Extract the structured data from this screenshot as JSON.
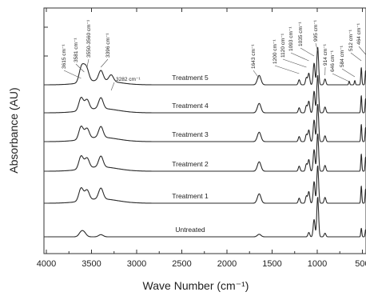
{
  "chart_data": {
    "type": "line",
    "title": "",
    "xlabel": "Wave Number (cm⁻¹)",
    "ylabel": "Absorbance (AU)",
    "xlim": [
      4000,
      460
    ],
    "x_reversed": true,
    "x_ticks": [
      4000,
      3500,
      3000,
      2500,
      2000,
      1500,
      1000,
      500
    ],
    "x_tick_labels": [
      "4000",
      "3500",
      "3000",
      "2500",
      "2000",
      "1500",
      "1000",
      "500"
    ],
    "y_ticks_shown": false,
    "grid": false,
    "series": [
      {
        "name": "Untreated",
        "peaks": [
          {
            "x": 3615,
            "h": 0.6
          },
          {
            "x": 3581,
            "h": 0.5
          },
          {
            "x": 3396,
            "h": 0.3
          },
          {
            "x": 1643,
            "h": 0.35
          },
          {
            "x": 1093,
            "h": 0.6
          },
          {
            "x": 1035,
            "h": 2.4
          },
          {
            "x": 995,
            "h": 5.5
          },
          {
            "x": 914,
            "h": 0.5
          },
          {
            "x": 512,
            "h": 1.2
          },
          {
            "x": 464,
            "h": 1.0
          }
        ]
      },
      {
        "name": "Treatment 1",
        "peaks": [
          {
            "x": 3615,
            "h": 1.8
          },
          {
            "x": 3550,
            "h": 1.4
          },
          {
            "x": 3396,
            "h": 1.5
          },
          {
            "x": 1643,
            "h": 1.3
          },
          {
            "x": 1200,
            "h": 0.7
          },
          {
            "x": 1120,
            "h": 1.0
          },
          {
            "x": 1093,
            "h": 1.6
          },
          {
            "x": 1035,
            "h": 3.0
          },
          {
            "x": 995,
            "h": 5.2
          },
          {
            "x": 914,
            "h": 0.8
          },
          {
            "x": 512,
            "h": 2.4
          },
          {
            "x": 464,
            "h": 2.0
          }
        ]
      },
      {
        "name": "Treatment 2",
        "peaks": [
          {
            "x": 3615,
            "h": 1.8
          },
          {
            "x": 3550,
            "h": 1.4
          },
          {
            "x": 3396,
            "h": 1.5
          },
          {
            "x": 1643,
            "h": 1.3
          },
          {
            "x": 1200,
            "h": 0.7
          },
          {
            "x": 1120,
            "h": 1.0
          },
          {
            "x": 1093,
            "h": 1.6
          },
          {
            "x": 1035,
            "h": 3.0
          },
          {
            "x": 995,
            "h": 5.2
          },
          {
            "x": 914,
            "h": 0.8
          },
          {
            "x": 512,
            "h": 2.4
          },
          {
            "x": 464,
            "h": 2.0
          }
        ]
      },
      {
        "name": "Treatment 3",
        "peaks": [
          {
            "x": 3615,
            "h": 1.8
          },
          {
            "x": 3550,
            "h": 1.4
          },
          {
            "x": 3396,
            "h": 1.5
          },
          {
            "x": 1643,
            "h": 1.3
          },
          {
            "x": 1200,
            "h": 0.7
          },
          {
            "x": 1120,
            "h": 1.0
          },
          {
            "x": 1093,
            "h": 1.6
          },
          {
            "x": 1035,
            "h": 3.0
          },
          {
            "x": 995,
            "h": 5.2
          },
          {
            "x": 914,
            "h": 0.8
          },
          {
            "x": 512,
            "h": 2.4
          },
          {
            "x": 464,
            "h": 2.0
          }
        ]
      },
      {
        "name": "Treatment 4",
        "peaks": [
          {
            "x": 3615,
            "h": 1.8
          },
          {
            "x": 3550,
            "h": 1.4
          },
          {
            "x": 3396,
            "h": 1.5
          },
          {
            "x": 1643,
            "h": 1.3
          },
          {
            "x": 1200,
            "h": 0.7
          },
          {
            "x": 1120,
            "h": 1.0
          },
          {
            "x": 1093,
            "h": 1.6
          },
          {
            "x": 1035,
            "h": 3.0
          },
          {
            "x": 995,
            "h": 5.2
          },
          {
            "x": 914,
            "h": 0.8
          },
          {
            "x": 512,
            "h": 2.4
          },
          {
            "x": 464,
            "h": 2.0
          }
        ]
      },
      {
        "name": "Treatment 5",
        "peaks": [
          {
            "x": 3615,
            "h": 1.8
          },
          {
            "x": 3581,
            "h": 1.2
          },
          {
            "x": 3550,
            "h": 1.4
          },
          {
            "x": 3396,
            "h": 1.4
          },
          {
            "x": 3282,
            "h": 0.9
          },
          {
            "x": 1643,
            "h": 1.3
          },
          {
            "x": 1200,
            "h": 0.7
          },
          {
            "x": 1120,
            "h": 1.0
          },
          {
            "x": 1093,
            "h": 1.6
          },
          {
            "x": 1035,
            "h": 3.0
          },
          {
            "x": 995,
            "h": 5.2
          },
          {
            "x": 914,
            "h": 0.8
          },
          {
            "x": 646,
            "h": 0.5
          },
          {
            "x": 584,
            "h": 0.6
          },
          {
            "x": 512,
            "h": 2.4
          },
          {
            "x": 464,
            "h": 2.0
          }
        ]
      }
    ],
    "annotations": [
      {
        "text": "3615 cm⁻¹",
        "x": 3615
      },
      {
        "text": "3581 cm⁻¹",
        "x": 3581
      },
      {
        "text": "3550-3560 cm⁻¹",
        "x": 3550
      },
      {
        "text": "3396 cm⁻¹",
        "x": 3396
      },
      {
        "text": "3282 cm⁻¹",
        "x": 3282
      },
      {
        "text": "1643 cm⁻¹",
        "x": 1643
      },
      {
        "text": "1200 cm⁻¹",
        "x": 1200
      },
      {
        "text": "1120 cm⁻¹",
        "x": 1120
      },
      {
        "text": "1093 cm⁻¹",
        "x": 1093
      },
      {
        "text": "1035 cm⁻¹",
        "x": 1035
      },
      {
        "text": "995 cm⁻¹",
        "x": 995
      },
      {
        "text": "914 cm⁻¹",
        "x": 914
      },
      {
        "text": "646 cm⁻¹",
        "x": 646
      },
      {
        "text": "584 cm⁻¹",
        "x": 584
      },
      {
        "text": "512 cm⁻¹",
        "x": 512
      },
      {
        "text": "464 cm⁻¹",
        "x": 464
      }
    ]
  }
}
